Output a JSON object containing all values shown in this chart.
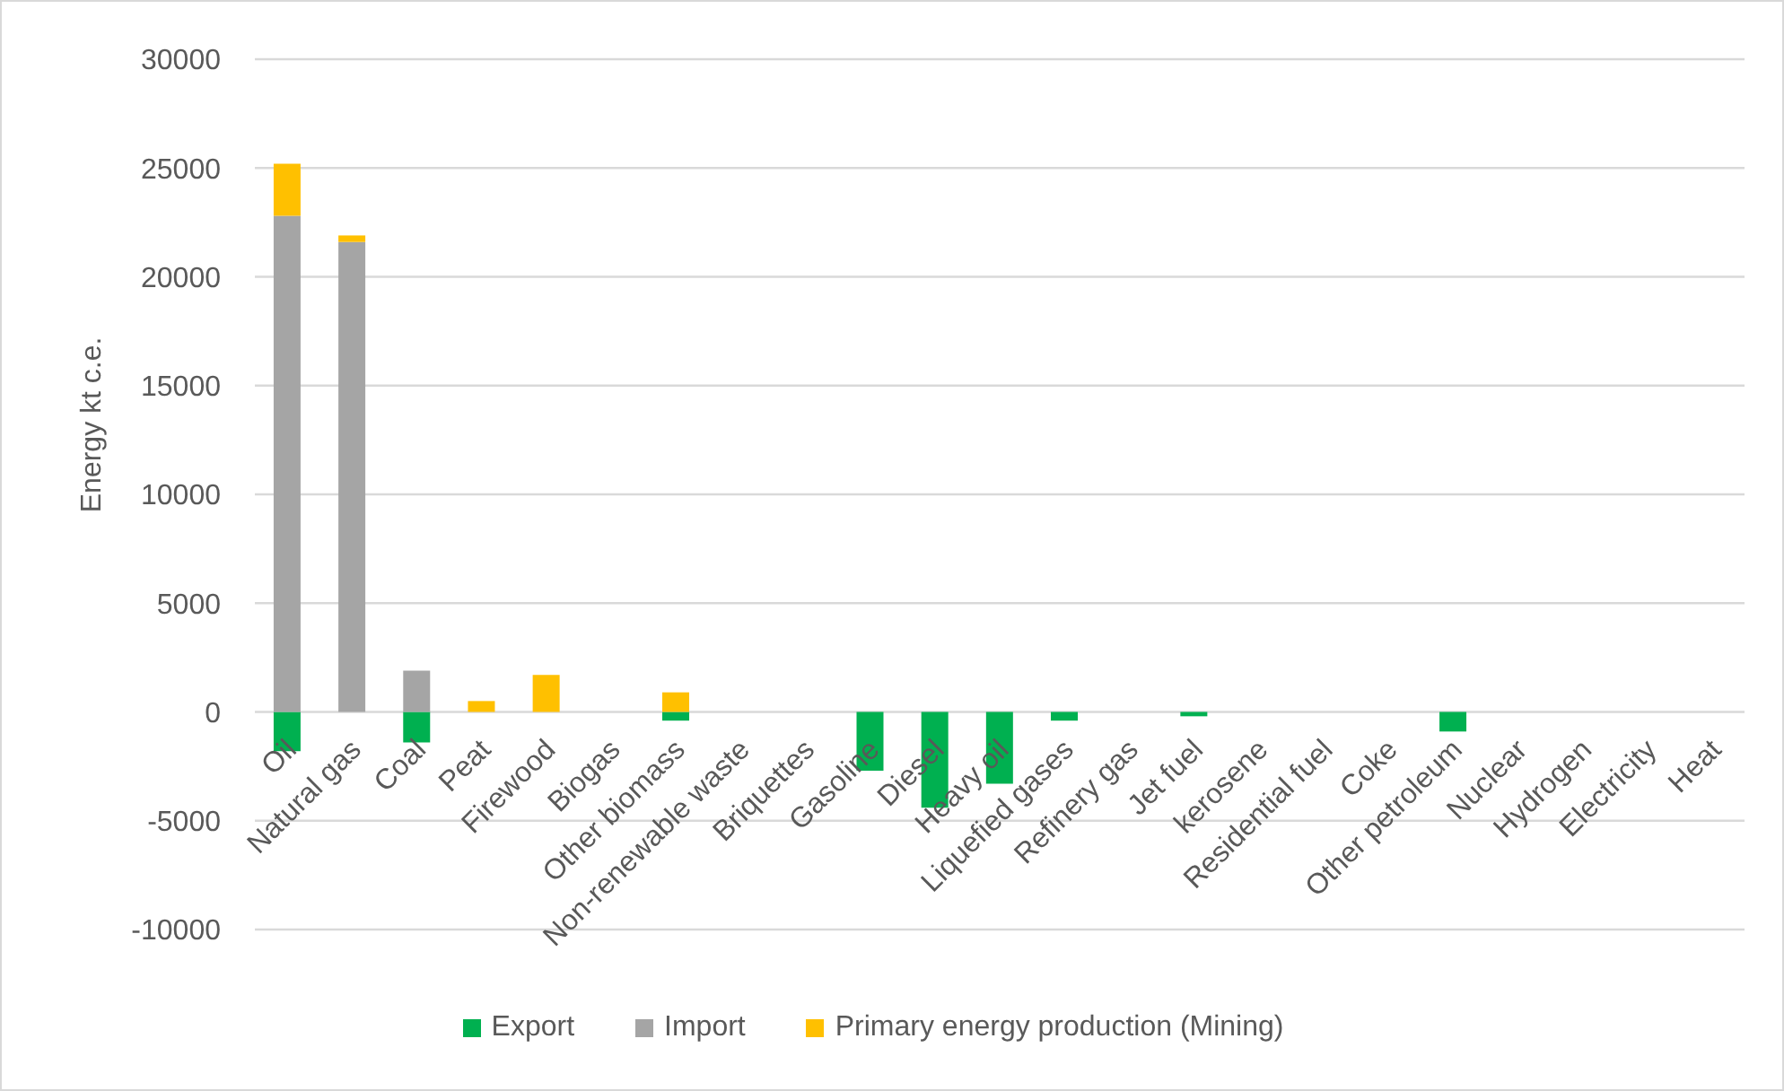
{
  "chart_data": {
    "type": "bar",
    "stacked": true,
    "ylabel": "Energy kt c.e.",
    "categories": [
      "Oil",
      "Natural gas",
      "Coal",
      "Peat",
      "Firewood",
      "Biogas",
      "Other biomass",
      "Non-renewable waste",
      "Briquettes",
      "Gasoline",
      "Diesel",
      "Heavy oil",
      "Liquefied gases",
      "Refinery gas",
      "Jet fuel",
      "kerosene",
      "Residential fuel",
      "Coke",
      "Other petroleum",
      "Nuclear",
      "Hydrogen",
      "Electricity",
      "Heat"
    ],
    "series": [
      {
        "name": "Export",
        "color": "#00b050",
        "values": [
          -1800,
          0,
          -1400,
          0,
          0,
          0,
          -400,
          0,
          0,
          -2700,
          -4400,
          -3300,
          -400,
          0,
          -200,
          0,
          0,
          0,
          -900,
          0,
          0,
          0,
          0
        ]
      },
      {
        "name": "Import",
        "color": "#a5a5a5",
        "values": [
          22800,
          21600,
          1900,
          0,
          0,
          0,
          0,
          0,
          0,
          0,
          0,
          0,
          0,
          0,
          0,
          0,
          0,
          0,
          0,
          0,
          0,
          0,
          0
        ]
      },
      {
        "name": "Primary energy production (Mining)",
        "color": "#ffc000",
        "values": [
          2400,
          300,
          0,
          500,
          1700,
          0,
          900,
          0,
          0,
          0,
          0,
          0,
          0,
          0,
          0,
          0,
          0,
          0,
          0,
          0,
          0,
          0,
          0
        ]
      }
    ],
    "ylim": [
      -10000,
      30000
    ],
    "yticks": [
      -10000,
      -5000,
      0,
      5000,
      10000,
      15000,
      20000,
      25000,
      30000
    ],
    "grid": "y",
    "legend": "bottom"
  }
}
